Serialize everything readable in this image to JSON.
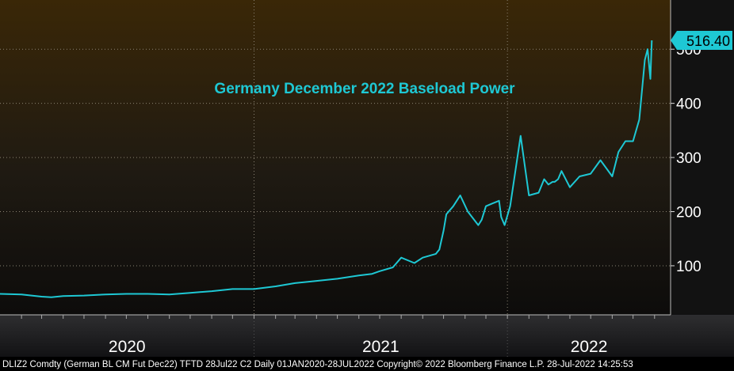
{
  "chart_data": {
    "type": "line",
    "title": "Germany December 2022 Baseload Power",
    "xlabel": "",
    "ylabel": "",
    "x_ticks": [
      "2020",
      "2021",
      "2022"
    ],
    "y_ticks": [
      100,
      200,
      300,
      400,
      500
    ],
    "ylim": [
      0,
      550
    ],
    "grid": true,
    "last_value": "516.40",
    "footer": "DLIZ2 Comdty (German BL CM Fut  Dec22) TFTD 28Jul22 C2  Daily 01JAN2020-28JUL2022  Copyright© 2022 Bloomberg Finance L.P.  28-Jul-2022 14:25:53",
    "series": [
      {
        "color": "#1ec8d4",
        "x": [
          "2020-01-01",
          "2020-02-01",
          "2020-03-01",
          "2020-03-15",
          "2020-04-01",
          "2020-05-01",
          "2020-06-01",
          "2020-07-01",
          "2020-08-01",
          "2020-09-01",
          "2020-10-01",
          "2020-11-01",
          "2020-12-01",
          "2021-01-01",
          "2021-02-01",
          "2021-03-01",
          "2021-04-01",
          "2021-05-01",
          "2021-06-01",
          "2021-06-20",
          "2021-07-01",
          "2021-07-20",
          "2021-08-01",
          "2021-08-20",
          "2021-09-01",
          "2021-09-20",
          "2021-09-25",
          "2021-10-01",
          "2021-10-05",
          "2021-10-15",
          "2021-10-25",
          "2021-11-05",
          "2021-11-20",
          "2021-11-25",
          "2021-12-01",
          "2021-12-10",
          "2021-12-20",
          "2021-12-23",
          "2021-12-28",
          "2022-01-05",
          "2022-01-20",
          "2022-02-01",
          "2022-02-15",
          "2022-02-23",
          "2022-03-01",
          "2022-03-07",
          "2022-03-10",
          "2022-03-15",
          "2022-03-20",
          "2022-04-01",
          "2022-04-15",
          "2022-05-01",
          "2022-05-15",
          "2022-06-01",
          "2022-06-10",
          "2022-06-20",
          "2022-07-01",
          "2022-07-10",
          "2022-07-18",
          "2022-07-22",
          "2022-07-26",
          "2022-07-28"
        ],
        "values": [
          48,
          47,
          43,
          42,
          44,
          45,
          47,
          48,
          48,
          47,
          50,
          53,
          57,
          57,
          62,
          68,
          72,
          76,
          82,
          85,
          90,
          97,
          115,
          105,
          115,
          122,
          130,
          165,
          195,
          210,
          230,
          200,
          175,
          185,
          210,
          215,
          220,
          190,
          175,
          210,
          340,
          230,
          235,
          260,
          250,
          255,
          255,
          260,
          275,
          245,
          265,
          270,
          295,
          265,
          310,
          330,
          330,
          370,
          480,
          500,
          445,
          516.4
        ]
      }
    ]
  }
}
